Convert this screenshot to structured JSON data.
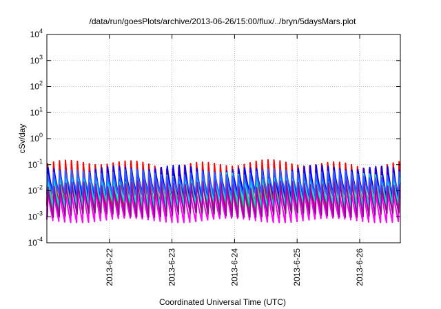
{
  "chart_data": {
    "type": "line",
    "title": "/data/run/goesPlots/archive/2013-06-26/15:00/flux/../bryn/5daysMars.plot",
    "xlabel": "Coordinated Universal Time (UTC)",
    "ylabel": "cSv/day",
    "y_scale": "log",
    "ylim": [
      0.0001,
      10000
    ],
    "y_ticks": [
      {
        "base": "10",
        "exp": "-4"
      },
      {
        "base": "10",
        "exp": "-3"
      },
      {
        "base": "10",
        "exp": "-2"
      },
      {
        "base": "10",
        "exp": "-1"
      },
      {
        "base": "10",
        "exp": "0"
      },
      {
        "base": "10",
        "exp": "1"
      },
      {
        "base": "10",
        "exp": "2"
      },
      {
        "base": "10",
        "exp": "3"
      },
      {
        "base": "10",
        "exp": "4"
      }
    ],
    "xlim_days": [
      21.0,
      26.65
    ],
    "x_ticks": [
      {
        "label": "2013-6-22",
        "day": 22
      },
      {
        "label": "2013-6-23",
        "day": 23
      },
      {
        "label": "2013-6-24",
        "day": 24
      },
      {
        "label": "2013-6-25",
        "day": 25
      },
      {
        "label": "2013-6-26",
        "day": 26
      }
    ],
    "grid": true,
    "cycles_per_day": 10.5,
    "series": [
      {
        "color": "#ff0000",
        "peak": 0.11,
        "trough": 0.0025
      },
      {
        "color": "#00b000",
        "peak": 0.03,
        "trough": 0.0014
      },
      {
        "color": "#0000ff",
        "peak": 0.07,
        "trough": 0.006
      },
      {
        "color": "#ff00ff",
        "peak": 0.012,
        "trough": 0.00075
      },
      {
        "color": "#00e0e0",
        "peak": 0.035,
        "trough": 0.003
      },
      {
        "color": "#a000a0",
        "peak": 0.02,
        "trough": 0.0012
      },
      {
        "color": "#3060ff",
        "peak": 0.05,
        "trough": 0.008
      }
    ]
  }
}
